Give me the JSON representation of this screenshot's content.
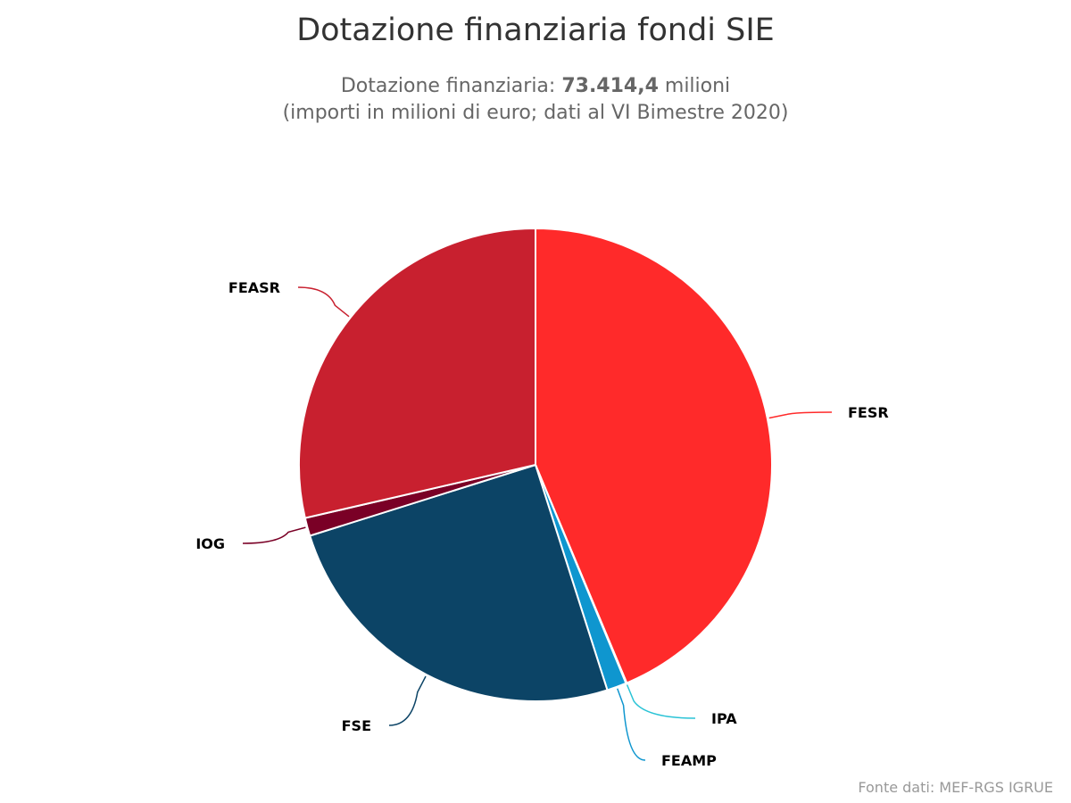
{
  "chart_data": {
    "type": "pie",
    "title": "Dotazione finanziaria fondi SIE",
    "subtitle": {
      "prefix": "Dotazione finanziaria: ",
      "total": "73.414,4",
      "suffix": " milioni",
      "line2": "(importi in milioni di euro; dati al VI Bimestre 2020)"
    },
    "credit": "Fonte dati: MEF-RGS IGRUE",
    "slices": [
      {
        "name": "FESR",
        "value": 32080,
        "color": "#ff2a2a"
      },
      {
        "name": "IPA",
        "value": 40,
        "color": "#2ac3d6"
      },
      {
        "name": "FEAMP",
        "value": 980,
        "color": "#0f96cf"
      },
      {
        "name": "FSE",
        "value": 18400,
        "color": "#0c4466"
      },
      {
        "name": "IOG",
        "value": 910,
        "color": "#7a0026"
      },
      {
        "name": "FEASR",
        "value": 21004,
        "color": "#c8202f"
      }
    ]
  }
}
